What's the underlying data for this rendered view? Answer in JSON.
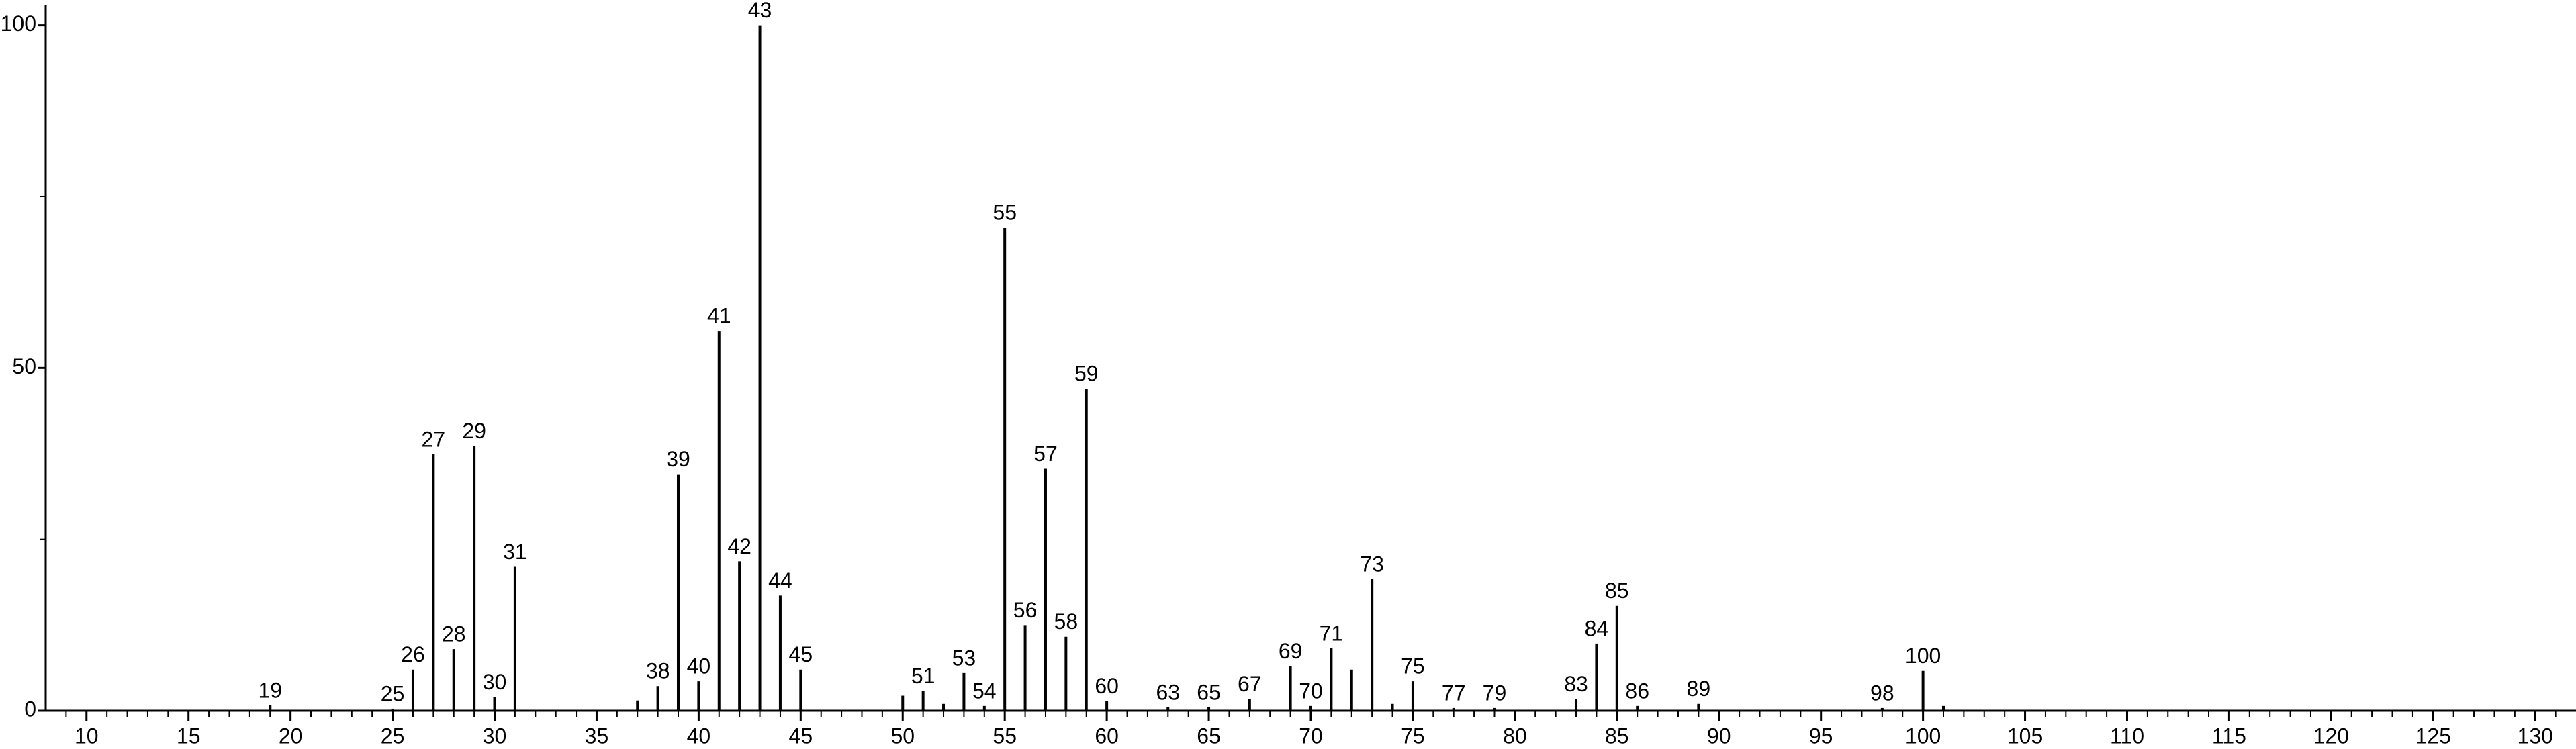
{
  "chart_data": {
    "type": "stem",
    "x": [
      19,
      25,
      26,
      27,
      28,
      29,
      30,
      31,
      37,
      38,
      39,
      40,
      41,
      42,
      43,
      44,
      45,
      50,
      51,
      52,
      53,
      54,
      55,
      56,
      57,
      58,
      59,
      60,
      63,
      65,
      67,
      69,
      70,
      71,
      72,
      73,
      74,
      75,
      77,
      79,
      83,
      84,
      85,
      86,
      89,
      98,
      100,
      101
    ],
    "values": [
      0.8,
      0.3,
      6,
      37.4,
      9,
      38.6,
      2,
      21,
      1.5,
      3.6,
      34.5,
      4.3,
      55.4,
      21.8,
      100,
      16.8,
      6,
      2.2,
      2.9,
      1,
      5.5,
      0.7,
      70.5,
      12.5,
      35.3,
      10.8,
      47,
      1.4,
      0.5,
      0.5,
      1.7,
      6.5,
      0.7,
      9.1,
      6,
      19.2,
      1,
      4.3,
      0.4,
      0.4,
      1.7,
      9.8,
      15.3,
      0.7,
      1,
      0.4,
      5.8,
      0.7
    ],
    "peak_labels": [
      "19",
      "25",
      "26",
      "27",
      "28",
      "29",
      "30",
      "31",
      null,
      "38",
      "39",
      "40",
      "41",
      "42",
      "43",
      "44",
      "45",
      null,
      "51",
      null,
      "53",
      "54",
      "55",
      "56",
      "57",
      "58",
      "59",
      "60",
      "63",
      "65",
      "67",
      "69",
      "70",
      "71",
      null,
      "73",
      null,
      "75",
      "77",
      "79",
      "83",
      "84",
      "85",
      "86",
      "89",
      "98",
      "100",
      null
    ],
    "color": "#000000",
    "xlim": [
      8,
      132
    ],
    "xticks": [
      10,
      15,
      20,
      25,
      30,
      35,
      40,
      45,
      50,
      55,
      60,
      65,
      70,
      75,
      80,
      85,
      90,
      95,
      100,
      105,
      110,
      115,
      120,
      125,
      130
    ],
    "xminor_ticks": [
      9,
      10,
      11,
      12,
      13,
      14,
      15,
      16,
      17,
      18,
      19,
      20,
      21,
      22,
      23,
      24,
      25,
      26,
      27,
      28,
      29,
      30,
      31,
      32,
      33,
      34,
      35,
      36,
      37,
      38,
      39,
      40,
      41,
      42,
      43,
      44,
      45,
      46,
      47,
      48,
      49,
      50,
      51,
      52,
      53,
      54,
      55,
      56,
      57,
      58,
      59,
      60,
      61,
      62,
      63,
      64,
      65,
      66,
      67,
      68,
      69,
      70,
      71,
      72,
      73,
      74,
      75,
      76,
      77,
      78,
      79,
      80,
      81,
      82,
      83,
      84,
      85,
      86,
      87,
      88,
      89,
      90,
      91,
      92,
      93,
      94,
      95,
      96,
      97,
      98,
      99,
      100,
      101,
      102,
      103,
      104,
      105,
      106,
      107,
      108,
      109,
      110,
      111,
      112,
      113,
      114,
      115,
      116,
      117,
      118,
      119,
      120,
      121,
      122,
      123,
      124,
      125,
      126,
      127,
      128,
      129,
      130,
      131
    ],
    "ylim": [
      0,
      103
    ],
    "yticks": [
      0,
      50,
      100
    ],
    "yminor_ticks": [
      25,
      75
    ]
  }
}
